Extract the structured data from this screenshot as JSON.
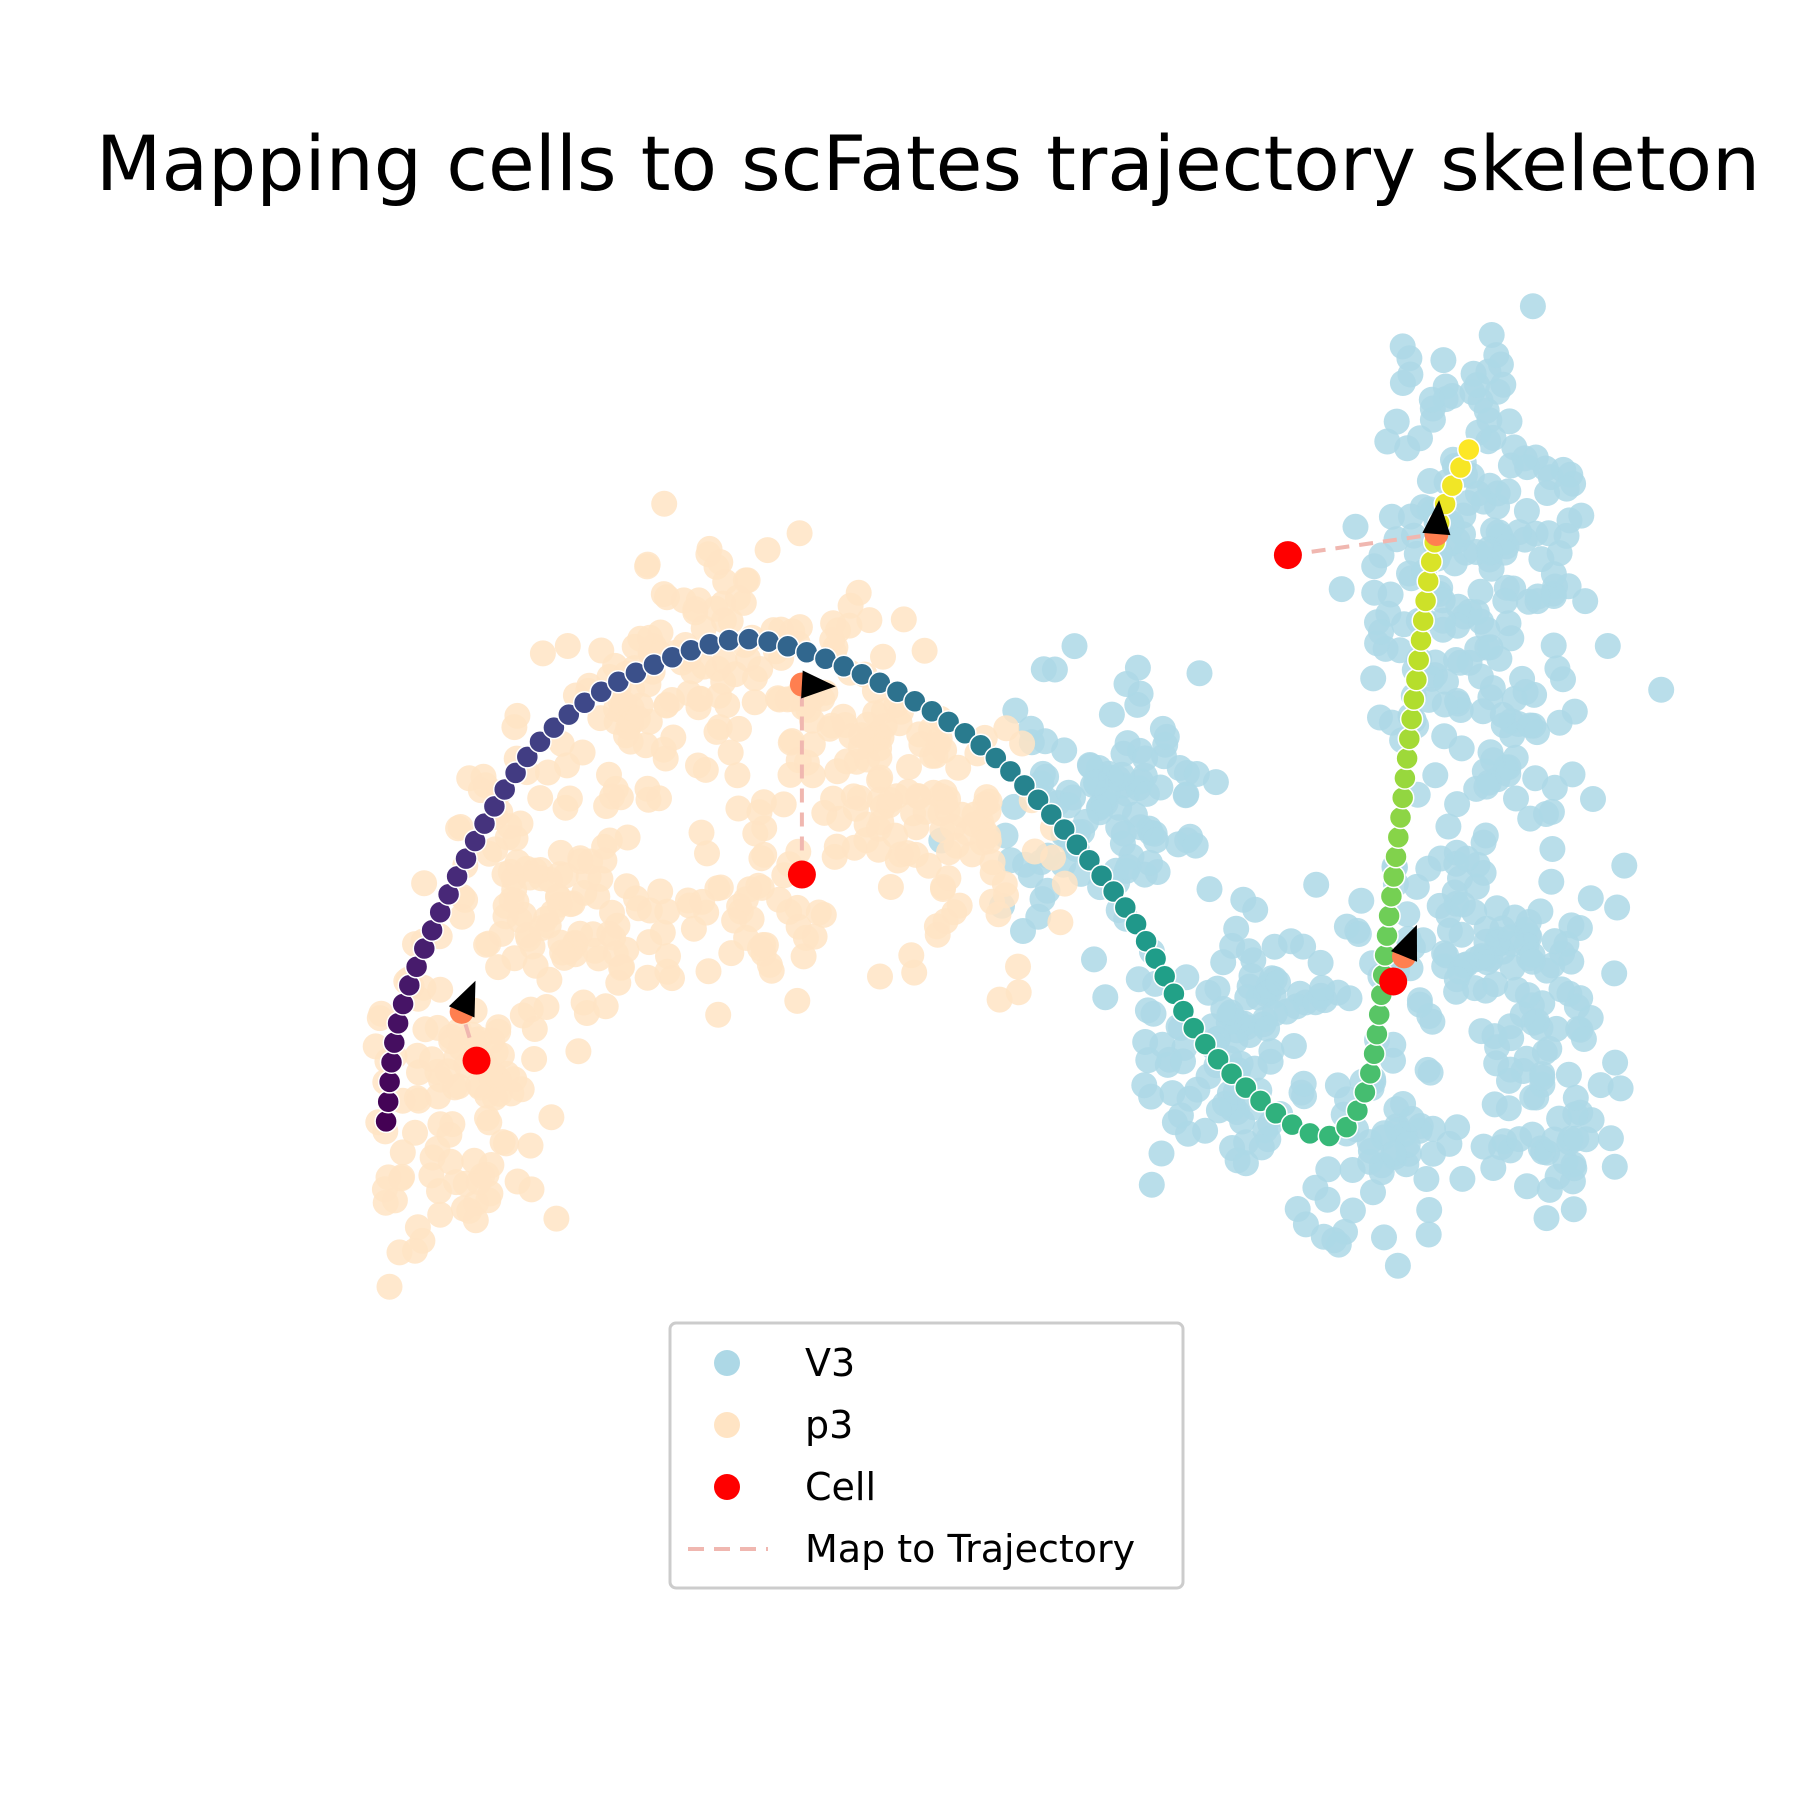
{
  "chart_data": {
    "type": "scatter",
    "title": "Mapping cells to scFates trajectory skeleton",
    "xlabel": "",
    "ylabel": "",
    "axes_visible": false,
    "grid": false,
    "legend_placement": "lower-center",
    "xlim": [
      0,
      100
    ],
    "ylim": [
      0,
      100
    ],
    "series": [
      {
        "name": "V3",
        "color": "#add8e6",
        "cluster_centers": [
          [
            93.4,
            36.4
          ],
          [
            93.4,
            47.7
          ],
          [
            92.1,
            64.9
          ],
          [
            91.4,
            79.3
          ],
          [
            88.2,
            49.8
          ],
          [
            73.6,
            45.1
          ],
          [
            81.6,
            33.7
          ],
          [
            70.6,
            38.2
          ],
          [
            64.4,
            62.1
          ],
          [
            59.6,
            56.9
          ],
          [
            85.7,
            74.2
          ],
          [
            88.8,
            86.5
          ]
        ]
      },
      {
        "name": "p3",
        "color": "#ffe4c4",
        "cluster_centers": [
          [
            13.8,
            32.9
          ],
          [
            14.4,
            42.6
          ],
          [
            18.8,
            55.9
          ],
          [
            26.8,
            66.4
          ],
          [
            33.3,
            72.5
          ],
          [
            40.6,
            66.3
          ],
          [
            46.3,
            61.7
          ],
          [
            52.2,
            55.6
          ],
          [
            23.1,
            49.9
          ],
          [
            35.9,
            53.2
          ]
        ]
      },
      {
        "name": "Cell",
        "color": "#ff0000",
        "points": [
          [
            15.3,
            40.1
          ],
          [
            39.4,
            54.2
          ],
          [
            83.2,
            46.1
          ],
          [
            75.4,
            78.4
          ]
        ]
      }
    ],
    "trajectory": {
      "colormap": "viridis",
      "knots": [
        [
          8.6,
          35.5
        ],
        [
          10.5,
          46.3
        ],
        [
          19.6,
          63.8
        ],
        [
          31.2,
          71.2
        ],
        [
          39.6,
          71.1
        ],
        [
          52.4,
          64.2
        ],
        [
          62.8,
          52.5
        ],
        [
          69.4,
          41.2
        ],
        [
          77.3,
          34.5
        ],
        [
          81.2,
          38.0
        ],
        [
          83.0,
          52.0
        ],
        [
          84.8,
          68.0
        ],
        [
          86.4,
          80.0
        ],
        [
          88.8,
          86.4
        ]
      ]
    },
    "mappings": [
      {
        "cell": [
          15.3,
          40.1
        ],
        "projection": [
          14.2,
          43.8
        ],
        "arrow_to": [
          15.5,
          46.8
        ]
      },
      {
        "cell": [
          39.4,
          54.2
        ],
        "projection": [
          39.4,
          68.6
        ],
        "arrow_to": [
          42.9,
          68.4
        ]
      },
      {
        "cell": [
          83.2,
          46.1
        ],
        "projection": [
          84.0,
          48.0
        ],
        "arrow_to": [
          84.2,
          48.5
        ]
      },
      {
        "cell": [
          75.4,
          78.4
        ],
        "projection": [
          86.4,
          80.0
        ],
        "arrow_to": [
          86.6,
          82.6
        ]
      }
    ],
    "legend": [
      {
        "label": "V3",
        "marker": "circle",
        "color": "#add8e6"
      },
      {
        "label": "p3",
        "marker": "circle",
        "color": "#ffe4c4"
      },
      {
        "label": "Cell",
        "marker": "circle",
        "color": "#ff0000"
      },
      {
        "label": "Map to Trajectory",
        "marker": "dashed-line",
        "color": "#f0b7b0"
      }
    ]
  }
}
